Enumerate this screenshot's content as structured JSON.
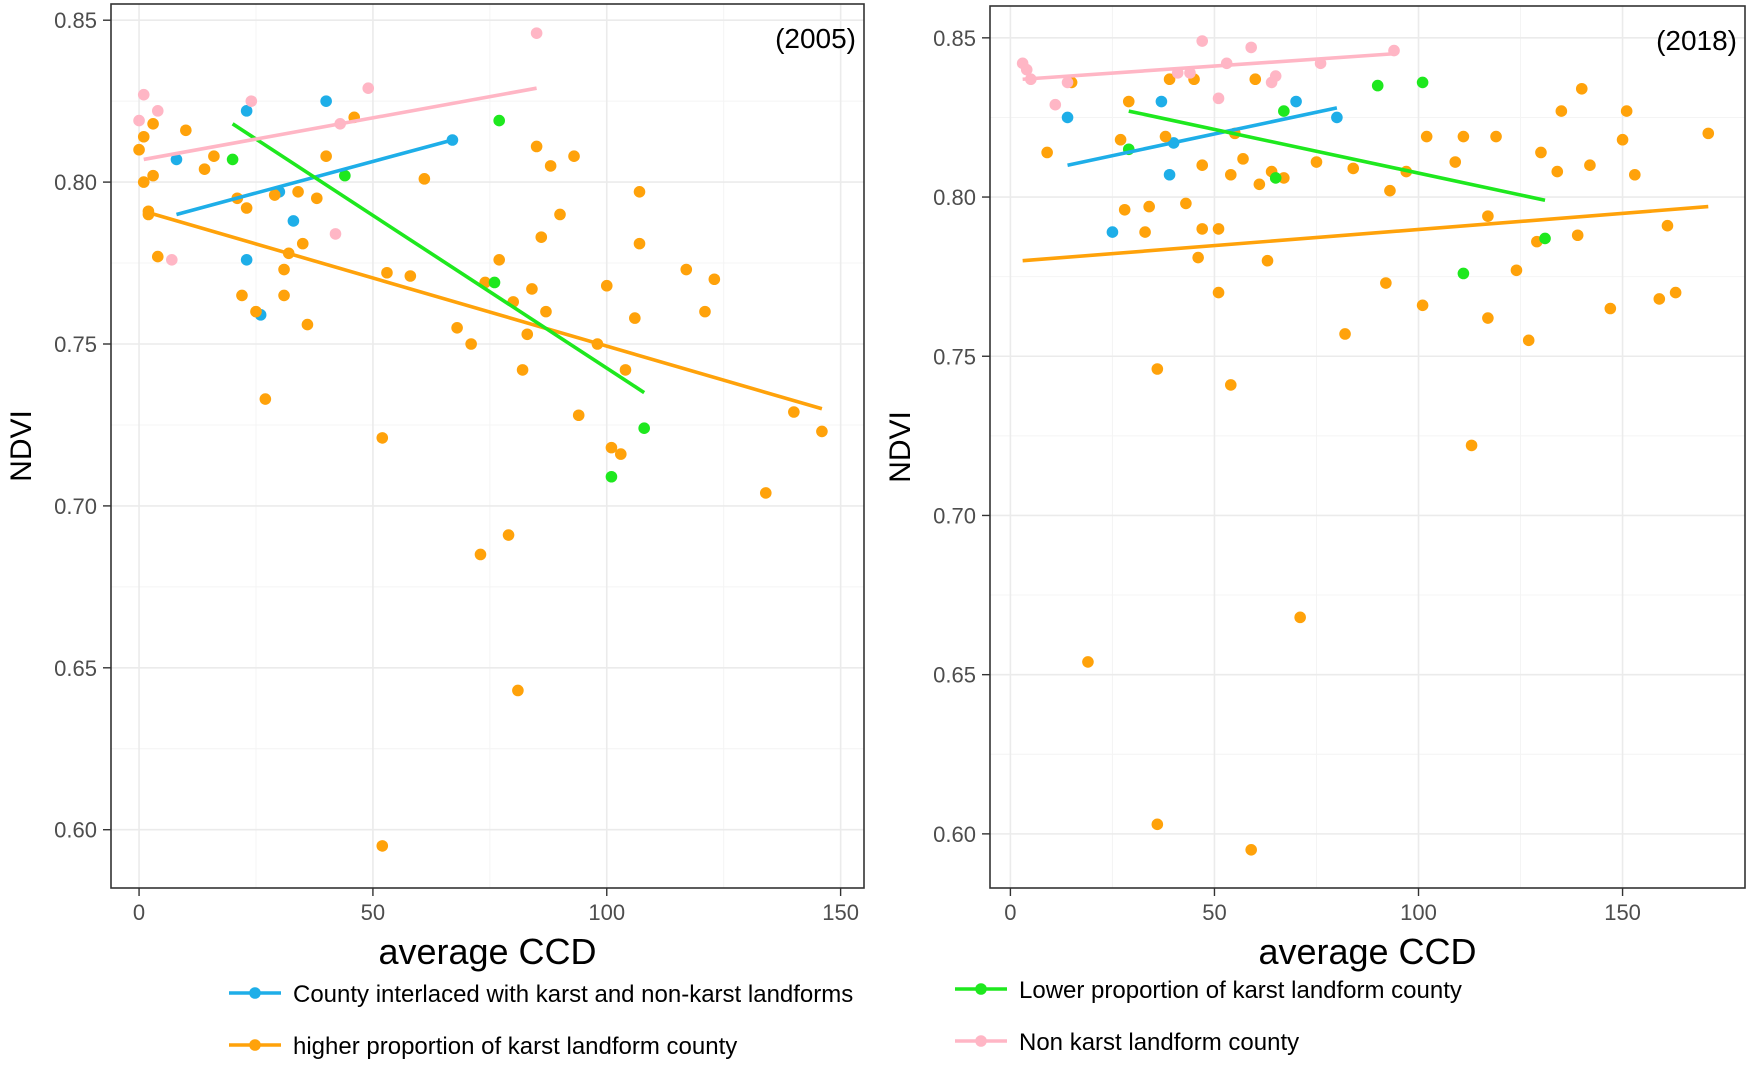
{
  "chart_data": [
    {
      "type": "scatter",
      "panel_label": "(2005)",
      "xlabel": "average CCD",
      "ylabel": "NDVI",
      "xlim": [
        -6,
        155
      ],
      "ylim": [
        0.582,
        0.855
      ],
      "xticks": [
        0,
        50,
        100,
        150
      ],
      "yticks": [
        0.6,
        0.65,
        0.7,
        0.75,
        0.8,
        0.85
      ],
      "grid": true,
      "series": [
        {
          "key": "interlaced",
          "name": "County interlaced with karst and non-karst landforms",
          "points": [
            [
              8,
              0.807
            ],
            [
              23,
              0.822
            ],
            [
              40,
              0.825
            ],
            [
              67,
              0.813
            ],
            [
              23,
              0.776
            ],
            [
              26,
              0.759
            ],
            [
              33,
              0.788
            ],
            [
              30,
              0.797
            ]
          ],
          "trend": [
            [
              8,
              0.79
            ],
            [
              67,
              0.813
            ]
          ]
        },
        {
          "key": "higher",
          "name": "higher proportion of karst landform county",
          "points": [
            [
              0,
              0.81
            ],
            [
              1,
              0.814
            ],
            [
              1,
              0.8
            ],
            [
              2,
              0.791
            ],
            [
              2,
              0.79
            ],
            [
              3,
              0.802
            ],
            [
              3,
              0.818
            ],
            [
              4,
              0.777
            ],
            [
              10,
              0.816
            ],
            [
              14,
              0.804
            ],
            [
              16,
              0.808
            ],
            [
              21,
              0.795
            ],
            [
              22,
              0.765
            ],
            [
              23,
              0.792
            ],
            [
              25,
              0.76
            ],
            [
              27,
              0.733
            ],
            [
              29,
              0.796
            ],
            [
              31,
              0.773
            ],
            [
              31,
              0.765
            ],
            [
              32,
              0.778
            ],
            [
              34,
              0.797
            ],
            [
              35,
              0.781
            ],
            [
              36,
              0.756
            ],
            [
              38,
              0.795
            ],
            [
              40,
              0.808
            ],
            [
              46,
              0.82
            ],
            [
              52,
              0.595
            ],
            [
              52,
              0.721
            ],
            [
              53,
              0.772
            ],
            [
              58,
              0.771
            ],
            [
              61,
              0.801
            ],
            [
              68,
              0.755
            ],
            [
              71,
              0.75
            ],
            [
              73,
              0.685
            ],
            [
              74,
              0.769
            ],
            [
              77,
              0.776
            ],
            [
              79,
              0.691
            ],
            [
              80,
              0.763
            ],
            [
              81,
              0.643
            ],
            [
              82,
              0.742
            ],
            [
              83,
              0.753
            ],
            [
              84,
              0.767
            ],
            [
              85,
              0.811
            ],
            [
              86,
              0.783
            ],
            [
              87,
              0.76
            ],
            [
              88,
              0.805
            ],
            [
              90,
              0.79
            ],
            [
              93,
              0.808
            ],
            [
              94,
              0.728
            ],
            [
              98,
              0.75
            ],
            [
              100,
              0.768
            ],
            [
              101,
              0.718
            ],
            [
              103,
              0.716
            ],
            [
              104,
              0.742
            ],
            [
              106,
              0.758
            ],
            [
              107,
              0.797
            ],
            [
              107,
              0.781
            ],
            [
              117,
              0.773
            ],
            [
              121,
              0.76
            ],
            [
              123,
              0.77
            ],
            [
              134,
              0.704
            ],
            [
              140,
              0.729
            ],
            [
              146,
              0.723
            ]
          ],
          "trend": [
            [
              1,
              0.791
            ],
            [
              146,
              0.73
            ]
          ]
        },
        {
          "key": "lower",
          "name": "Lower proportion of karst landform county",
          "points": [
            [
              20,
              0.807
            ],
            [
              44,
              0.802
            ],
            [
              77,
              0.819
            ],
            [
              76,
              0.769
            ],
            [
              101,
              0.709
            ],
            [
              108,
              0.724
            ]
          ],
          "trend": [
            [
              20,
              0.818
            ],
            [
              108,
              0.735
            ]
          ]
        },
        {
          "key": "nonkarst",
          "name": "Non karst landform county",
          "points": [
            [
              0,
              0.819
            ],
            [
              1,
              0.827
            ],
            [
              4,
              0.822
            ],
            [
              7,
              0.776
            ],
            [
              24,
              0.825
            ],
            [
              42,
              0.784
            ],
            [
              43,
              0.818
            ],
            [
              49,
              0.829
            ],
            [
              85,
              0.846
            ]
          ],
          "trend": [
            [
              1,
              0.807
            ],
            [
              85,
              0.829
            ]
          ]
        }
      ]
    },
    {
      "type": "scatter",
      "panel_label": "(2018)",
      "xlabel": "average CCD",
      "ylabel": "NDVI",
      "xlim": [
        -5,
        180
      ],
      "ylim": [
        0.583,
        0.86
      ],
      "xticks": [
        0,
        50,
        100,
        150
      ],
      "yticks": [
        0.6,
        0.65,
        0.7,
        0.75,
        0.8,
        0.85
      ],
      "grid": true,
      "series": [
        {
          "key": "interlaced",
          "name": "County interlaced with karst and non-karst landforms",
          "points": [
            [
              14,
              0.825
            ],
            [
              25,
              0.789
            ],
            [
              37,
              0.83
            ],
            [
              39,
              0.807
            ],
            [
              40,
              0.817
            ],
            [
              70,
              0.83
            ],
            [
              80,
              0.825
            ]
          ],
          "trend": [
            [
              14,
              0.81
            ],
            [
              80,
              0.828
            ]
          ]
        },
        {
          "key": "higher",
          "name": "higher proportion of karst landform county",
          "points": [
            [
              9,
              0.814
            ],
            [
              15,
              0.836
            ],
            [
              19,
              0.654
            ],
            [
              27,
              0.818
            ],
            [
              28,
              0.796
            ],
            [
              29,
              0.83
            ],
            [
              33,
              0.789
            ],
            [
              34,
              0.797
            ],
            [
              36,
              0.603
            ],
            [
              36,
              0.746
            ],
            [
              38,
              0.819
            ],
            [
              39,
              0.837
            ],
            [
              43,
              0.798
            ],
            [
              45,
              0.837
            ],
            [
              46,
              0.781
            ],
            [
              47,
              0.81
            ],
            [
              47,
              0.79
            ],
            [
              51,
              0.79
            ],
            [
              51,
              0.77
            ],
            [
              54,
              0.741
            ],
            [
              54,
              0.807
            ],
            [
              55,
              0.82
            ],
            [
              57,
              0.812
            ],
            [
              59,
              0.595
            ],
            [
              60,
              0.837
            ],
            [
              61,
              0.804
            ],
            [
              63,
              0.78
            ],
            [
              64,
              0.808
            ],
            [
              67,
              0.806
            ],
            [
              71,
              0.668
            ],
            [
              75,
              0.811
            ],
            [
              82,
              0.757
            ],
            [
              84,
              0.809
            ],
            [
              92,
              0.773
            ],
            [
              93,
              0.802
            ],
            [
              97,
              0.808
            ],
            [
              101,
              0.766
            ],
            [
              102,
              0.819
            ],
            [
              109,
              0.811
            ],
            [
              111,
              0.819
            ],
            [
              113,
              0.722
            ],
            [
              117,
              0.762
            ],
            [
              117,
              0.794
            ],
            [
              119,
              0.819
            ],
            [
              124,
              0.777
            ],
            [
              127,
              0.755
            ],
            [
              129,
              0.786
            ],
            [
              130,
              0.814
            ],
            [
              134,
              0.808
            ],
            [
              135,
              0.827
            ],
            [
              139,
              0.788
            ],
            [
              140,
              0.834
            ],
            [
              142,
              0.81
            ],
            [
              147,
              0.765
            ],
            [
              150,
              0.818
            ],
            [
              151,
              0.827
            ],
            [
              153,
              0.807
            ],
            [
              159,
              0.768
            ],
            [
              161,
              0.791
            ],
            [
              163,
              0.77
            ],
            [
              171,
              0.82
            ]
          ],
          "trend": [
            [
              3,
              0.78
            ],
            [
              171,
              0.797
            ]
          ]
        },
        {
          "key": "lower",
          "name": "Lower proportion of karst landform county",
          "points": [
            [
              29,
              0.815
            ],
            [
              65,
              0.806
            ],
            [
              67,
              0.827
            ],
            [
              90,
              0.835
            ],
            [
              101,
              0.836
            ],
            [
              111,
              0.776
            ],
            [
              131,
              0.787
            ]
          ],
          "trend": [
            [
              29,
              0.827
            ],
            [
              131,
              0.799
            ]
          ]
        },
        {
          "key": "nonkarst",
          "name": "Non karst landform county",
          "points": [
            [
              3,
              0.842
            ],
            [
              4,
              0.84
            ],
            [
              5,
              0.837
            ],
            [
              11,
              0.829
            ],
            [
              14,
              0.836
            ],
            [
              41,
              0.839
            ],
            [
              44,
              0.839
            ],
            [
              47,
              0.849
            ],
            [
              51,
              0.831
            ],
            [
              53,
              0.842
            ],
            [
              59,
              0.847
            ],
            [
              64,
              0.836
            ],
            [
              65,
              0.838
            ],
            [
              76,
              0.842
            ],
            [
              94,
              0.846
            ]
          ],
          "trend": [
            [
              3,
              0.837
            ],
            [
              94,
              0.845
            ]
          ]
        }
      ]
    }
  ],
  "legend": {
    "items": [
      {
        "key": "interlaced",
        "label": "County interlaced with karst and non-karst landforms"
      },
      {
        "key": "lower",
        "label": "Lower proportion of karst landform county"
      },
      {
        "key": "higher",
        "label": "higher proportion of karst landform county"
      },
      {
        "key": "nonkarst",
        "label": "Non karst landform county"
      }
    ]
  },
  "colors": {
    "interlaced": "#1eaee8",
    "higher": "#ffa20a",
    "lower": "#1ee81e",
    "nonkarst": "#ffb6c5"
  }
}
